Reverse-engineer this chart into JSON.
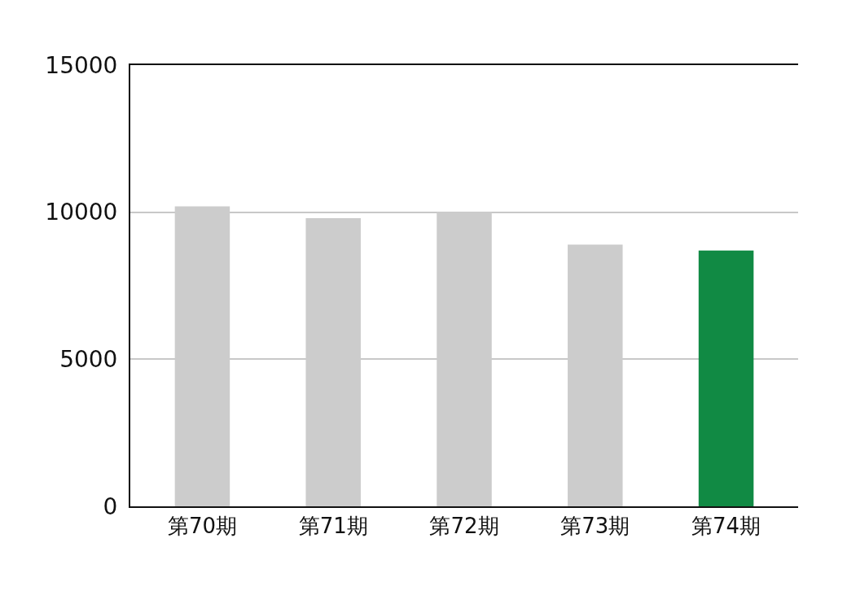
{
  "chart_data": {
    "type": "bar",
    "categories": [
      "第70期",
      "第71期",
      "第72期",
      "第73期",
      "第74期"
    ],
    "values": [
      10200,
      9800,
      10000,
      8900,
      8700
    ],
    "colors": [
      "#cccccc",
      "#cccccc",
      "#cccccc",
      "#cccccc",
      "#118a44"
    ],
    "ylim": [
      0,
      15000
    ],
    "yticks": [
      0,
      5000,
      10000,
      15000
    ],
    "grid": "y"
  }
}
